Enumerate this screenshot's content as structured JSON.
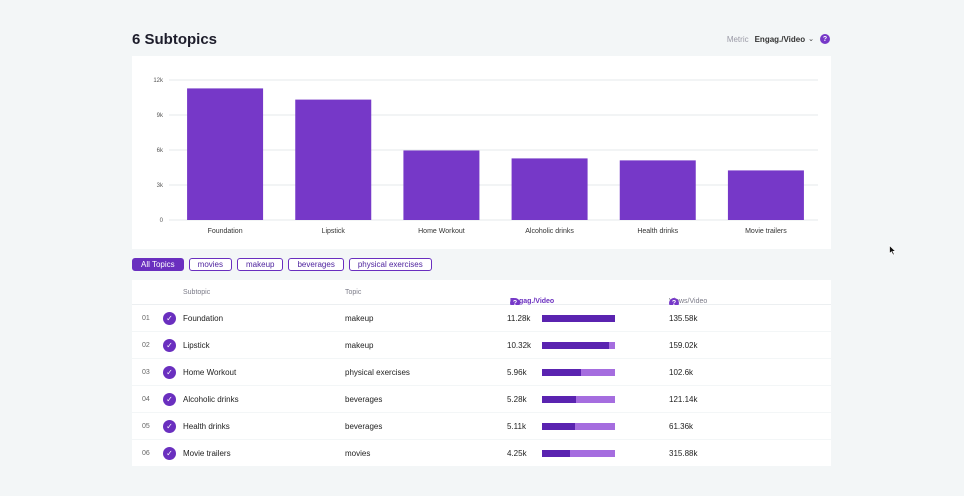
{
  "header": {
    "title": "6 Subtopics",
    "metric_label": "Metric",
    "metric_value": "Engag./Video",
    "help": "?"
  },
  "chart_data": {
    "type": "bar",
    "categories": [
      "Foundation",
      "Lipstick",
      "Home Workout",
      "Alcoholic drinks",
      "Health drinks",
      "Movie trailers"
    ],
    "values": [
      11280,
      10320,
      5960,
      5280,
      5110,
      4250
    ],
    "ylim": [
      0,
      12000
    ],
    "yticks": [
      0,
      3000,
      6000,
      9000,
      12000
    ],
    "ytick_labels": [
      "0",
      "3k",
      "6k",
      "9k",
      "12k"
    ],
    "grid": true,
    "color": "#7638c8"
  },
  "filters": [
    {
      "label": "All Topics",
      "active": true
    },
    {
      "label": "movies",
      "active": false
    },
    {
      "label": "makeup",
      "active": false
    },
    {
      "label": "beverages",
      "active": false
    },
    {
      "label": "physical exercises",
      "active": false
    }
  ],
  "table": {
    "headers": {
      "subtopic": "Subtopic",
      "topic": "Topic",
      "engagement": "Engag./Video",
      "views": "Views/Video",
      "sort_arrow": "↓",
      "help": "?"
    },
    "max_engagement": 11280,
    "rows": [
      {
        "index": "01",
        "subtopic": "Foundation",
        "topic": "makeup",
        "engagement": "11.28k",
        "eng_value": 11280,
        "views": "135.58k"
      },
      {
        "index": "02",
        "subtopic": "Lipstick",
        "topic": "makeup",
        "engagement": "10.32k",
        "eng_value": 10320,
        "views": "159.02k"
      },
      {
        "index": "03",
        "subtopic": "Home Workout",
        "topic": "physical exercises",
        "engagement": "5.96k",
        "eng_value": 5960,
        "views": "102.6k"
      },
      {
        "index": "04",
        "subtopic": "Alcoholic drinks",
        "topic": "beverages",
        "engagement": "5.28k",
        "eng_value": 5280,
        "views": "121.14k"
      },
      {
        "index": "05",
        "subtopic": "Health drinks",
        "topic": "beverages",
        "engagement": "5.11k",
        "eng_value": 5110,
        "views": "61.36k"
      },
      {
        "index": "06",
        "subtopic": "Movie trailers",
        "topic": "movies",
        "engagement": "4.25k",
        "eng_value": 4250,
        "views": "315.88k"
      }
    ]
  },
  "icons": {
    "check": "check-icon",
    "chevron": "chevron-down-icon",
    "cursor": "mouse-cursor-icon"
  }
}
